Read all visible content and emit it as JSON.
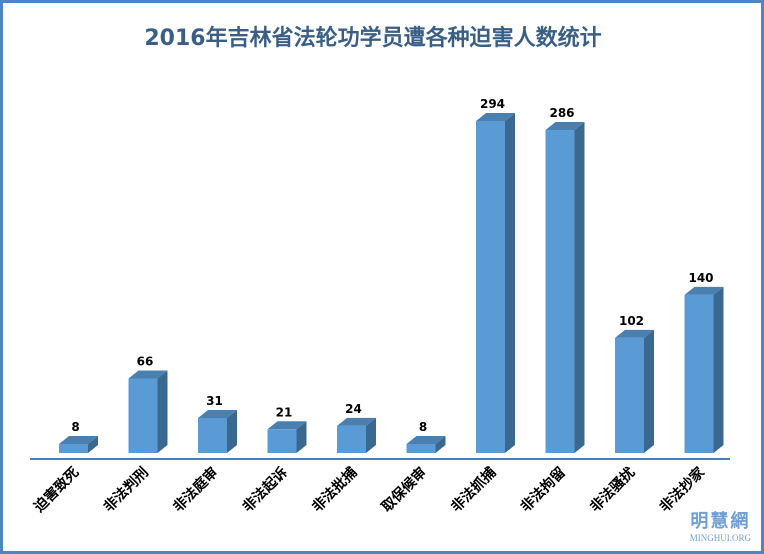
{
  "chart_data": {
    "type": "bar",
    "title": "2016年吉林省法轮功学员遭各种迫害人数统计",
    "categories": [
      "迫害致死",
      "非法判刑",
      "非法庭审",
      "非法起诉",
      "非法批捕",
      "取保候审",
      "非法抓捕",
      "非法拘留",
      "非法骚扰",
      "非法抄家"
    ],
    "values": [
      8,
      66,
      31,
      21,
      24,
      8,
      294,
      286,
      102,
      140
    ],
    "xlabel": "",
    "ylabel": "",
    "ylim": [
      0,
      300
    ],
    "grid": false,
    "legend": "none",
    "style": "3d-column",
    "colors": {
      "front": "#5b9bd5",
      "side": "#3a6891",
      "top": "#4a7fb0",
      "title": "#3a5f86",
      "axis": "#4a7ebb",
      "border": "#4a86c5"
    }
  },
  "watermark": {
    "cn": "明慧網",
    "en": "MINGHUI.ORG"
  }
}
